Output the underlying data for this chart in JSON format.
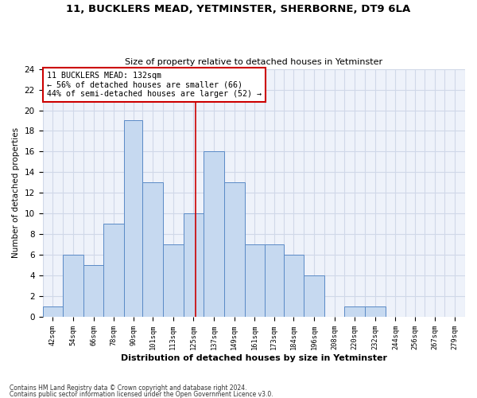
{
  "title1": "11, BUCKLERS MEAD, YETMINSTER, SHERBORNE, DT9 6LA",
  "title2": "Size of property relative to detached houses in Yetminster",
  "xlabel": "Distribution of detached houses by size in Yetminster",
  "ylabel": "Number of detached properties",
  "bin_labels": [
    "42sqm",
    "54sqm",
    "66sqm",
    "78sqm",
    "90sqm",
    "101sqm",
    "113sqm",
    "125sqm",
    "137sqm",
    "149sqm",
    "161sqm",
    "173sqm",
    "184sqm",
    "196sqm",
    "208sqm",
    "220sqm",
    "232sqm",
    "244sqm",
    "256sqm",
    "267sqm",
    "279sqm"
  ],
  "bar_values": [
    1,
    6,
    5,
    9,
    19,
    13,
    7,
    10,
    16,
    13,
    7,
    7,
    6,
    4,
    0,
    1,
    1,
    0,
    0,
    0,
    0
  ],
  "bin_edges": [
    42,
    54,
    66,
    78,
    90,
    101,
    113,
    125,
    137,
    149,
    161,
    173,
    184,
    196,
    208,
    220,
    232,
    244,
    256,
    267,
    279,
    291
  ],
  "bar_color": "#c6d9f0",
  "bar_edgecolor": "#5a8ac6",
  "subject_value": 132,
  "vline_color": "#cc0000",
  "annotation_line1": "11 BUCKLERS MEAD: 132sqm",
  "annotation_line2": "← 56% of detached houses are smaller (66)",
  "annotation_line3": "44% of semi-detached houses are larger (52) →",
  "annotation_box_edgecolor": "#cc0000",
  "ylim": [
    0,
    24
  ],
  "yticks": [
    0,
    2,
    4,
    6,
    8,
    10,
    12,
    14,
    16,
    18,
    20,
    22,
    24
  ],
  "grid_color": "#d0d8e8",
  "bg_color": "#eef2fa",
  "footer1": "Contains HM Land Registry data © Crown copyright and database right 2024.",
  "footer2": "Contains public sector information licensed under the Open Government Licence v3.0."
}
